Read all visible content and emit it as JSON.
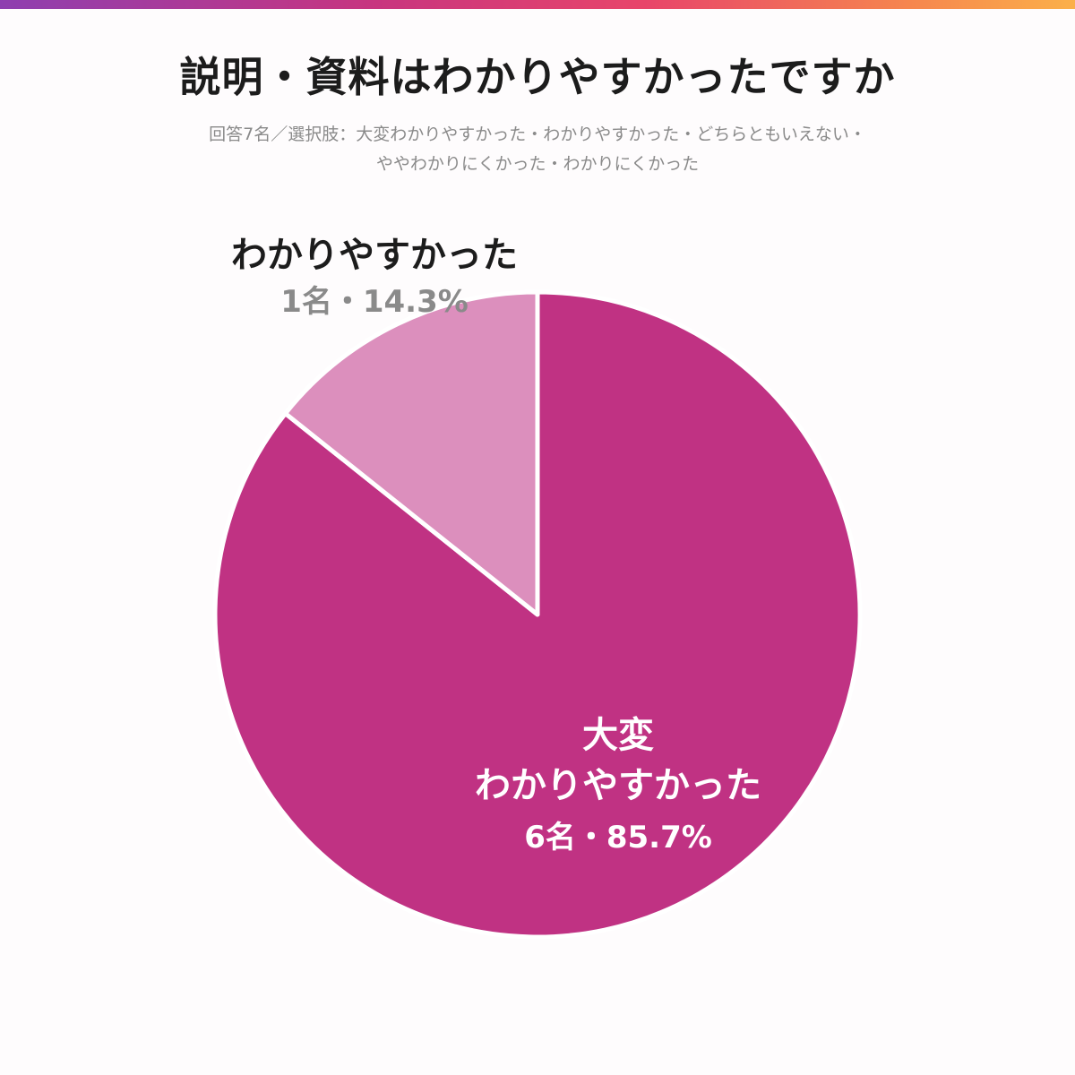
{
  "title": "説明・資料はわかりやすかったですか",
  "subtitle_lines": [
    "回答7名／選択肢：大変わかりやすかった・わかりやすかった・どちらともいえない・",
    "ややわかりにくかった・わかりにくかった"
  ],
  "colors": {
    "accent_gradient": [
      "#8e3fb0",
      "#c8357f",
      "#e8456a",
      "#f6874e",
      "#fbb04a"
    ],
    "slice_major": "#c03283",
    "slice_minor": "#dc8fbd"
  },
  "chart_data": {
    "type": "pie",
    "total_respondents": 7,
    "slices": [
      {
        "label_lines": [
          "大変",
          "わかりやすかった"
        ],
        "value": 6,
        "percent": 85.7,
        "value_text": "6名・85.7%",
        "color": "#c03283"
      },
      {
        "label_lines": [
          "わかりやすかった"
        ],
        "value": 1,
        "percent": 14.3,
        "value_text": "1名・14.3%",
        "color": "#dc8fbd"
      }
    ],
    "legend": "none"
  }
}
